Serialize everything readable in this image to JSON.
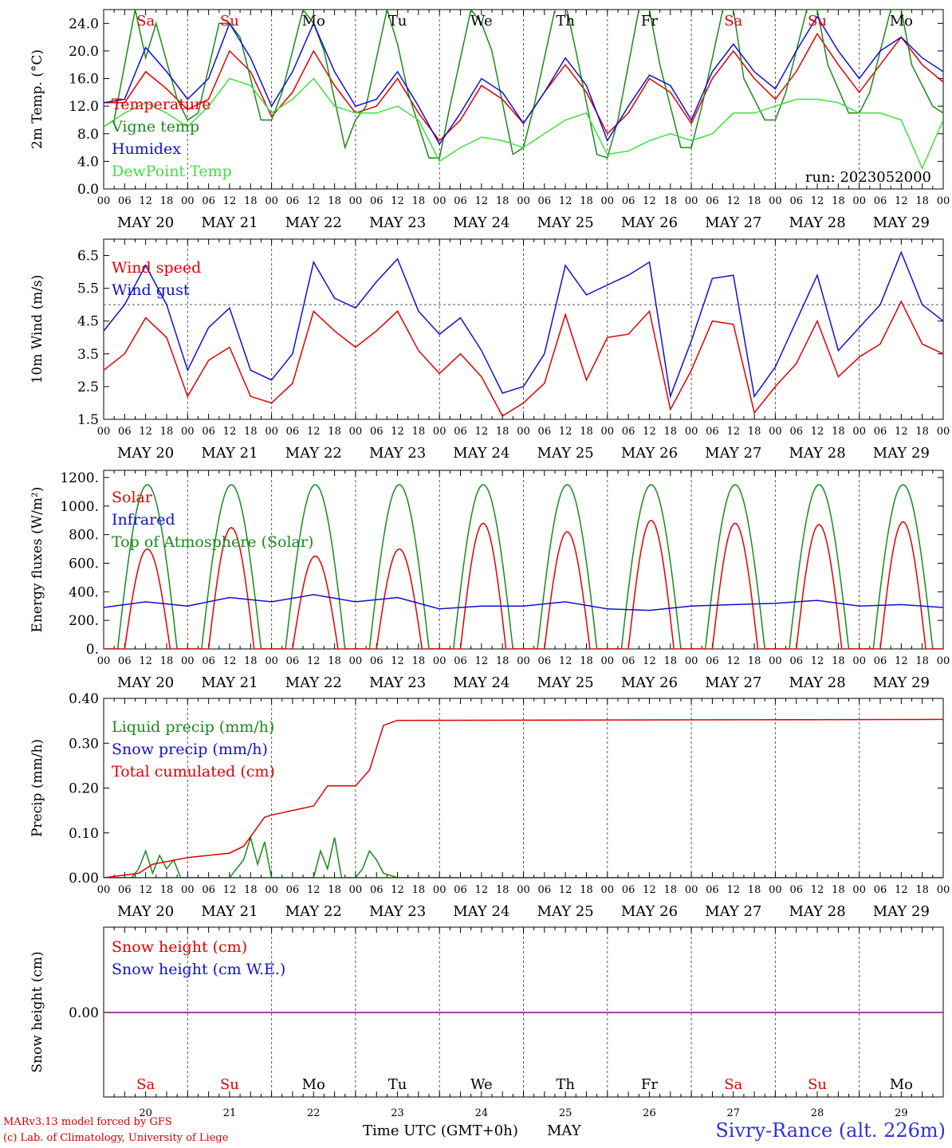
{
  "run_label": "run: 2023052000",
  "station": "Sivry-Rance (alt. 226m)",
  "credits": [
    "MARv3.13 model forced by GFS",
    "(c) Lab. of Climatology, University of Liege"
  ],
  "xaxis": {
    "hour_labels": [
      "00",
      "06",
      "12",
      "18"
    ],
    "final_hour_label": "00",
    "date_labels": [
      "MAY 20",
      "MAY 21",
      "MAY 22",
      "MAY 23",
      "MAY 24",
      "MAY 25",
      "MAY 26",
      "MAY 27",
      "MAY 28",
      "MAY 29"
    ],
    "bottom_day_numbers": [
      "20",
      "21",
      "22",
      "23",
      "24",
      "25",
      "26",
      "27",
      "28",
      "29"
    ],
    "bottom_title": "Time UTC (GMT+0h)",
    "bottom_month": "MAY"
  },
  "weekdays": [
    {
      "label": "Sa",
      "color": "#e00000"
    },
    {
      "label": "Su",
      "color": "#e00000"
    },
    {
      "label": "Mo",
      "color": "#000000"
    },
    {
      "label": "Tu",
      "color": "#000000"
    },
    {
      "label": "We",
      "color": "#000000"
    },
    {
      "label": "Th",
      "color": "#000000"
    },
    {
      "label": "Fr",
      "color": "#000000"
    },
    {
      "label": "Sa",
      "color": "#e00000"
    },
    {
      "label": "Su",
      "color": "#e00000"
    },
    {
      "label": "Mo",
      "color": "#000000"
    }
  ],
  "chart_data": [
    {
      "type": "line",
      "ylabel": "2m Temp. (°C)",
      "ylim": [
        0,
        26
      ],
      "yticks": [
        "0.0",
        "4.0",
        "8.0",
        "12.0",
        "16.0",
        "20.0",
        "24.0"
      ],
      "ytick_values": [
        0,
        4,
        8,
        12,
        16,
        20,
        24
      ],
      "x_unit": "hours since MAY 20 00 UTC",
      "series": [
        {
          "name": "Temperature",
          "color": "#e00000",
          "x": [
            0,
            6,
            12,
            18,
            24,
            30,
            36,
            42,
            48,
            54,
            60,
            66,
            72,
            78,
            84,
            90,
            96,
            102,
            108,
            114,
            120,
            126,
            132,
            138,
            144,
            150,
            156,
            162,
            168,
            174,
            180,
            186,
            192,
            198,
            204,
            210,
            216,
            222,
            228,
            234,
            240
          ],
          "values": [
            12.5,
            12.5,
            17,
            14.5,
            11.5,
            13,
            20,
            17,
            10.5,
            14,
            20,
            15,
            11,
            12,
            16,
            11,
            7,
            10,
            15,
            13,
            9.5,
            14,
            18,
            14,
            8,
            11,
            16,
            14,
            9.5,
            16,
            20,
            16,
            13,
            17,
            22.5,
            18,
            14,
            18,
            22,
            18,
            15.5
          ]
        },
        {
          "name": "Vigne temp",
          "color": "#1a8a1a",
          "x": [
            0,
            3,
            9,
            12,
            15,
            21,
            24,
            27,
            33,
            36,
            39,
            45,
            48,
            51,
            57,
            60,
            63,
            69,
            72,
            75,
            81,
            84,
            87,
            93,
            96,
            99,
            105,
            108,
            111,
            117,
            120,
            123,
            129,
            132,
            135,
            141,
            144,
            147,
            153,
            156,
            159,
            165,
            168,
            171,
            177,
            180,
            183,
            189,
            192,
            195,
            201,
            204,
            207,
            213,
            216,
            219,
            225,
            228,
            231,
            237,
            240
          ],
          "values": [
            9,
            10,
            26,
            19,
            24,
            13,
            10,
            11,
            24,
            24,
            22,
            10,
            10,
            14,
            26,
            24,
            20,
            6,
            10,
            12,
            26,
            21,
            14,
            4.5,
            4.5,
            12,
            26,
            24,
            20,
            5,
            6,
            12,
            26,
            27,
            20,
            5,
            4.5,
            10,
            26,
            26,
            18,
            6,
            6,
            12,
            26,
            26,
            16,
            10,
            10,
            14,
            26,
            26,
            18,
            11,
            11,
            14,
            26,
            26,
            18,
            12,
            11
          ]
        },
        {
          "name": "Humidex",
          "color": "#1010d0",
          "x": [
            0,
            6,
            12,
            18,
            24,
            30,
            36,
            42,
            48,
            54,
            60,
            66,
            72,
            78,
            84,
            90,
            96,
            102,
            108,
            114,
            120,
            126,
            132,
            138,
            144,
            150,
            156,
            162,
            168,
            174,
            180,
            186,
            192,
            198,
            204,
            210,
            216,
            222,
            228,
            234,
            240
          ],
          "values": [
            12.5,
            13,
            20.5,
            17,
            13,
            16,
            24,
            19,
            12,
            17,
            24,
            17,
            12,
            13,
            17,
            12,
            6.5,
            11,
            16,
            14,
            9.5,
            14,
            19,
            15,
            7,
            12,
            16.5,
            15,
            10,
            17,
            21,
            17,
            14.5,
            20,
            25,
            20,
            16,
            20,
            22,
            19,
            17
          ]
        },
        {
          "name": "DewPoint Temp",
          "color": "#40e040",
          "x": [
            0,
            6,
            12,
            18,
            24,
            30,
            36,
            42,
            48,
            54,
            60,
            66,
            72,
            78,
            84,
            90,
            96,
            102,
            108,
            114,
            120,
            126,
            132,
            138,
            144,
            150,
            156,
            162,
            168,
            174,
            180,
            186,
            192,
            198,
            204,
            210,
            216,
            222,
            228,
            234,
            240
          ],
          "values": [
            9,
            11,
            12.5,
            11,
            9,
            12,
            16,
            15,
            11,
            13,
            16,
            12,
            11,
            11,
            12,
            10,
            4,
            6,
            7.5,
            7,
            6,
            8,
            10,
            11,
            5,
            5.5,
            7,
            8,
            7,
            8,
            11,
            11,
            12,
            13,
            13,
            12.5,
            11,
            11,
            10,
            3,
            10
          ]
        }
      ],
      "legend": [
        "Temperature",
        "Vigne temp",
        "Humidex",
        "DewPoint Temp"
      ]
    },
    {
      "type": "line",
      "ylabel": "10m Wind (m/s)",
      "ylim": [
        1.5,
        7.0
      ],
      "yticks": [
        "1.5",
        "2.5",
        "3.5",
        "4.5",
        "5.5",
        "6.5"
      ],
      "ytick_values": [
        1.5,
        2.5,
        3.5,
        4.5,
        5.5,
        6.5
      ],
      "reference_line": 5.0,
      "x_unit": "hours since MAY 20 00 UTC",
      "series": [
        {
          "name": "Wind speed",
          "color": "#e00000",
          "x": [
            0,
            6,
            12,
            18,
            24,
            30,
            36,
            42,
            48,
            54,
            60,
            66,
            72,
            78,
            84,
            90,
            96,
            102,
            108,
            114,
            120,
            126,
            132,
            138,
            144,
            150,
            156,
            162,
            168,
            174,
            180,
            186,
            192,
            198,
            204,
            210,
            216,
            222,
            228,
            234,
            240
          ],
          "values": [
            3,
            3.5,
            4.6,
            4,
            2.2,
            3.3,
            3.7,
            2.2,
            2,
            2.6,
            4.8,
            4.2,
            3.7,
            4.2,
            4.8,
            3.6,
            2.9,
            3.5,
            2.8,
            1.6,
            2,
            2.6,
            4.7,
            2.7,
            4,
            4.1,
            4.8,
            1.8,
            3,
            4.5,
            4.4,
            1.7,
            2.5,
            3.2,
            4.5,
            2.8,
            3.4,
            3.8,
            5.1,
            3.8,
            3.5
          ]
        },
        {
          "name": "Wind gust",
          "color": "#1010d0",
          "x": [
            0,
            6,
            12,
            18,
            24,
            30,
            36,
            42,
            48,
            54,
            60,
            66,
            72,
            78,
            84,
            90,
            96,
            102,
            108,
            114,
            120,
            126,
            132,
            138,
            144,
            150,
            156,
            162,
            168,
            174,
            180,
            186,
            192,
            198,
            204,
            210,
            216,
            222,
            228,
            234,
            240
          ],
          "values": [
            4.2,
            5,
            6.2,
            5,
            3,
            4.3,
            4.9,
            3,
            2.7,
            3.5,
            6.3,
            5.2,
            4.9,
            5.7,
            6.4,
            4.8,
            4.1,
            4.6,
            3.6,
            2.3,
            2.5,
            3.5,
            6.2,
            5.3,
            5.6,
            5.9,
            6.3,
            2.2,
            3.9,
            5.8,
            5.9,
            2.2,
            3.1,
            4.5,
            5.9,
            3.6,
            4.3,
            5,
            6.6,
            5,
            4.5
          ]
        }
      ],
      "legend": [
        "Wind speed",
        "Wind gust"
      ]
    },
    {
      "type": "line",
      "ylabel": "Energy fluxes (W/m²)",
      "ylim": [
        0,
        1250
      ],
      "yticks": [
        "0.",
        "200.",
        "400.",
        "600.",
        "800.",
        "1000.",
        "1200."
      ],
      "ytick_values": [
        0,
        200,
        400,
        600,
        800,
        1000,
        1200
      ],
      "x_unit": "hours since MAY 20 00 UTC",
      "daily_sun": {
        "sunrise_hour": 4,
        "sunset_hour": 21,
        "toa_peak": 1150
      },
      "solar_daily_peak": [
        700,
        850,
        650,
        700,
        880,
        820,
        900,
        880,
        870,
        890
      ],
      "series": [
        {
          "name": "Solar",
          "color": "#e00000"
        },
        {
          "name": "Infrared",
          "color": "#1010d0",
          "x": [
            0,
            12,
            24,
            36,
            48,
            60,
            72,
            84,
            96,
            108,
            120,
            132,
            144,
            156,
            168,
            180,
            192,
            204,
            216,
            228,
            240
          ],
          "values": [
            290,
            330,
            300,
            360,
            330,
            380,
            330,
            360,
            280,
            300,
            300,
            330,
            280,
            270,
            300,
            310,
            320,
            340,
            300,
            310,
            290
          ]
        },
        {
          "name": "Top of Atmosphere (Solar)",
          "color": "#1a8a1a"
        }
      ],
      "legend": [
        "Solar",
        "Infrared",
        "Top of Atmosphere (Solar)"
      ]
    },
    {
      "type": "line",
      "ylabel": "Precip (mm/h)",
      "ylim": [
        0,
        0.4
      ],
      "yticks": [
        "0.00",
        "0.10",
        "0.20",
        "0.30",
        "0.40"
      ],
      "ytick_values": [
        0,
        0.1,
        0.2,
        0.3,
        0.4
      ],
      "x_unit": "hours since MAY 20 00 UTC",
      "series": [
        {
          "name": "Liquid precip (mm/h)",
          "color": "#1a8a1a",
          "x": [
            0,
            8,
            10,
            12,
            14,
            16,
            18,
            20,
            22,
            24,
            36,
            40,
            42,
            44,
            46,
            48,
            60,
            62,
            64,
            66,
            68,
            72,
            74,
            76,
            78,
            80,
            84,
            240
          ],
          "values": [
            0,
            0,
            0.02,
            0.06,
            0.01,
            0.05,
            0.02,
            0.04,
            0,
            0,
            0,
            0.04,
            0.09,
            0.03,
            0.08,
            0,
            0,
            0.06,
            0.02,
            0.09,
            0,
            0,
            0.02,
            0.06,
            0.04,
            0.01,
            0,
            0
          ]
        },
        {
          "name": "Snow precip (mm/h)",
          "color": "#1010d0",
          "x": [
            0,
            240
          ],
          "values": [
            0,
            0
          ]
        },
        {
          "name": "Total cumulated (cm)",
          "color": "#e00000",
          "x": [
            0,
            10,
            14,
            24,
            36,
            40,
            46,
            48,
            60,
            64,
            72,
            76,
            80,
            84,
            240
          ],
          "values": [
            0,
            0.01,
            0.03,
            0.045,
            0.055,
            0.07,
            0.135,
            0.14,
            0.16,
            0.205,
            0.205,
            0.24,
            0.34,
            0.351,
            0.353
          ]
        }
      ],
      "legend": [
        "Liquid precip (mm/h)",
        "Snow precip (mm/h)",
        "Total cumulated (cm)"
      ]
    },
    {
      "type": "line",
      "ylabel": "Snow height (cm)",
      "yticks": [
        "0.00"
      ],
      "ytick_values": [
        0
      ],
      "x_unit": "hours since MAY 20 00 UTC",
      "series": [
        {
          "name": "Snow height (cm)",
          "color": "#e00000",
          "x": [
            0,
            240
          ],
          "values": [
            0,
            0
          ]
        },
        {
          "name": "Snow height (cm W.E.)",
          "color": "#1010d0",
          "x": [
            0,
            240
          ],
          "values": [
            0,
            0
          ]
        }
      ],
      "legend": [
        "Snow height (cm)",
        "Snow height (cm W.E.)"
      ]
    }
  ]
}
